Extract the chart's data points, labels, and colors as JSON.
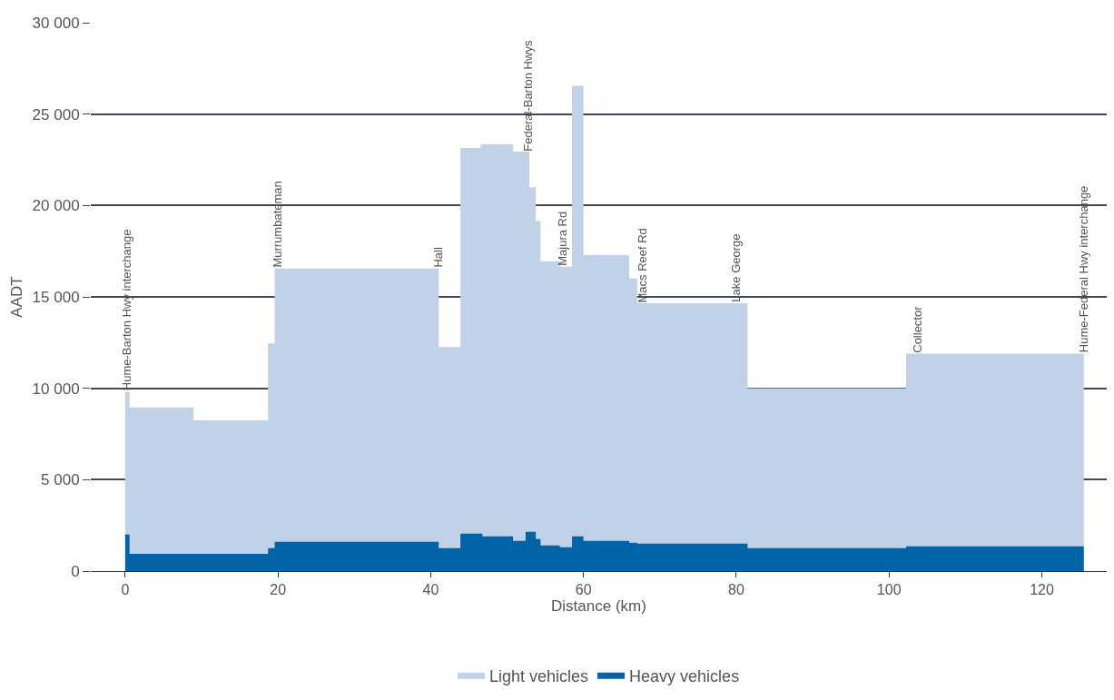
{
  "chart_data": {
    "type": "area",
    "xlabel": "Distance (km)",
    "ylabel": "AADT",
    "series": [
      {
        "name": "Light vehicles",
        "color": "#c1d1e8",
        "x": [
          0,
          0.45,
          0.45,
          8.83,
          8.83,
          18.82,
          18.82,
          19.69,
          19.69,
          40.93,
          40.93,
          44.01,
          44.01,
          46.65,
          46.65,
          50.66,
          50.66,
          52.79,
          52.79,
          53.64,
          53.64,
          54.26,
          54.26,
          56.78,
          56.78,
          58.62,
          58.62,
          59.87,
          59.87,
          65.86,
          65.86,
          66.91,
          66.91,
          81.36,
          81.36,
          102.35,
          102.35,
          125.5
        ],
        "values": [
          9750,
          9750,
          8900,
          8900,
          8200,
          8200,
          12400,
          12400,
          16500,
          16500,
          12200,
          12200,
          23100,
          23100,
          23300,
          23300,
          22900,
          22900,
          20950,
          20950,
          19100,
          19100,
          16900,
          16900,
          16600,
          16600,
          26500,
          26500,
          17250,
          17250,
          15950,
          15950,
          14600,
          14600,
          9950,
          9950,
          11850,
          11850
        ]
      },
      {
        "name": "Heavy vehicles",
        "color": "#0064a6",
        "x": [
          0,
          0.45,
          0.45,
          18.82,
          18.82,
          19.69,
          19.69,
          40.93,
          40.93,
          44.01,
          44.01,
          46.65,
          46.65,
          50.66,
          50.66,
          52.54,
          52.54,
          53.64,
          53.64,
          54.26,
          54.26,
          56.78,
          56.78,
          58.62,
          58.62,
          59.87,
          59.87,
          65.86,
          65.86,
          66.91,
          66.91,
          81.36,
          81.36,
          102.35,
          102.35,
          125.5
        ],
        "values": [
          1950,
          1950,
          900,
          900,
          1200,
          1200,
          1550,
          1550,
          1200,
          1200,
          2000,
          2000,
          1850,
          1850,
          1600,
          1600,
          2100,
          2100,
          1700,
          1700,
          1350,
          1350,
          1250,
          1250,
          1850,
          1850,
          1600,
          1600,
          1500,
          1500,
          1450,
          1450,
          1200,
          1200,
          1300,
          1300
        ]
      }
    ],
    "xlim": [
      -4.5,
      128.5
    ],
    "xticks": [
      0,
      20,
      40,
      60,
      80,
      100,
      120
    ],
    "ylim": [
      0,
      30000
    ],
    "yticks": [
      {
        "value": 0,
        "label": "0"
      },
      {
        "value": 5000,
        "label": "5 000"
      },
      {
        "value": 10000,
        "label": "10 000"
      },
      {
        "value": 15000,
        "label": "15 000"
      },
      {
        "value": 20000,
        "label": "20 000"
      },
      {
        "value": 25000,
        "label": "25 000"
      },
      {
        "value": 30000,
        "label": "30 000"
      }
    ],
    "grid": "y",
    "legend": "bottom",
    "annotations": [
      {
        "text": "Hume-Barton Hwy interchange",
        "x": 0.2,
        "y": 9750
      },
      {
        "text": "Murrumbateman",
        "x": 19.9,
        "y": 16500
      },
      {
        "text": "Hall",
        "x": 40.93,
        "y": 16500
      },
      {
        "text": "Federal-Barton Hwys",
        "x": 52.7,
        "y": 22850
      },
      {
        "text": "Majura Rd",
        "x": 57.3,
        "y": 16600
      },
      {
        "text": "Macs Reef Rd",
        "x": 67.7,
        "y": 14600
      },
      {
        "text": "Lake George",
        "x": 79.9,
        "y": 14600
      },
      {
        "text": "Collector",
        "x": 103.7,
        "y": 11850
      },
      {
        "text": "Hume-Federal Hwy interchange",
        "x": 125.5,
        "y": 11850
      }
    ]
  }
}
